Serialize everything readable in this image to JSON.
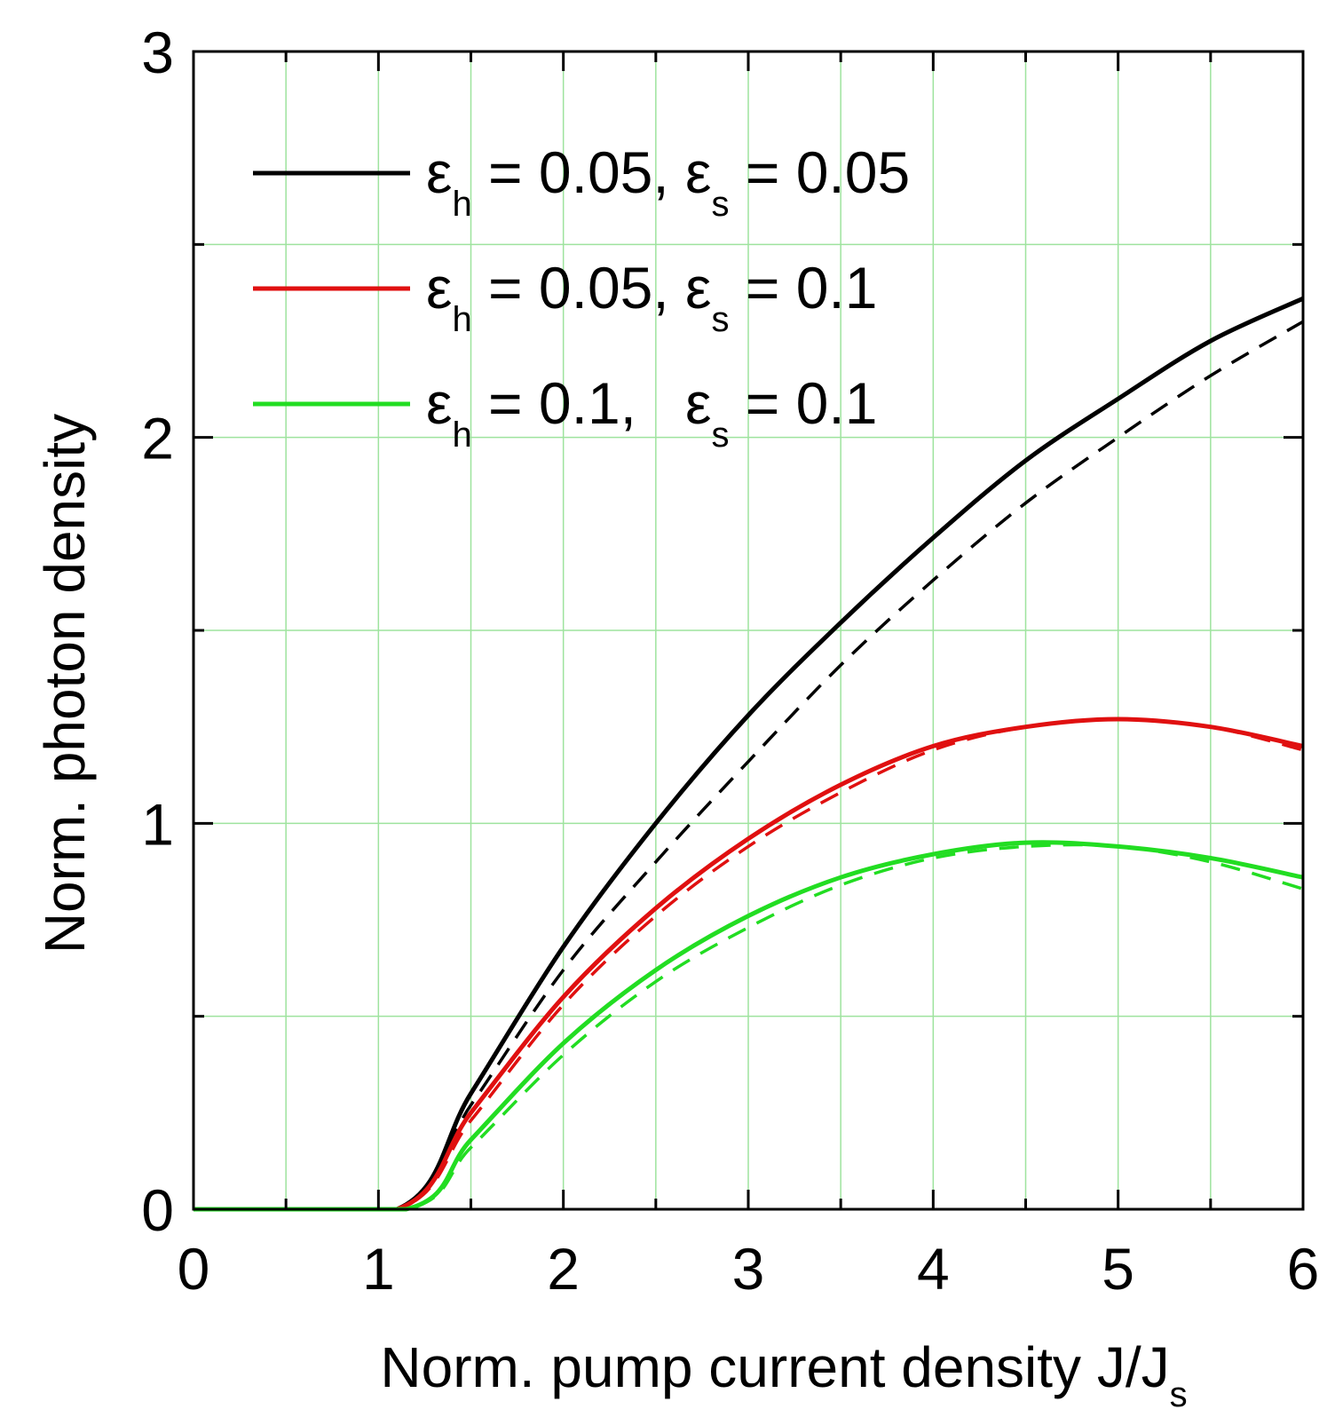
{
  "chart_data": {
    "type": "line",
    "xlabel": "Norm. pump current density J/J",
    "xlabel_sub": "s",
    "ylabel": "Norm. photon density",
    "xlim": [
      0,
      6
    ],
    "ylim": [
      0,
      3
    ],
    "x_ticks": [
      "0",
      "1",
      "2",
      "3",
      "4",
      "5",
      "6"
    ],
    "y_ticks": [
      "0",
      "1",
      "2",
      "3"
    ],
    "grid": true,
    "grid_color": "#9ee39e",
    "legend_position": "top-left",
    "series": [
      {
        "name": "εh = 0.05, εs = 0.05",
        "legend": {
          "eps1": "ε",
          "sub1": "h",
          "mid": " = 0.05, ",
          "eps2": "ε",
          "sub2": "s",
          "end": " = 0.05"
        },
        "color": "#000000",
        "style": "solid",
        "x": [
          0,
          1.1,
          1.5,
          2.0,
          2.5,
          3.0,
          3.5,
          4.0,
          4.5,
          5.0,
          5.5,
          6.0
        ],
        "y": [
          0,
          0,
          0.3,
          0.68,
          1.0,
          1.28,
          1.52,
          1.74,
          1.94,
          2.1,
          2.25,
          2.36
        ]
      },
      {
        "name": "εh = 0.05, εs = 0.05 (dashed)",
        "color": "#000000",
        "style": "dashed",
        "x": [
          0,
          1.1,
          1.5,
          2.0,
          2.5,
          3.0,
          3.5,
          4.0,
          4.5,
          5.0,
          5.5,
          6.0
        ],
        "y": [
          0,
          0,
          0.27,
          0.62,
          0.9,
          1.16,
          1.41,
          1.63,
          1.83,
          2.0,
          2.16,
          2.3
        ]
      },
      {
        "name": "εh = 0.05, εs = 0.1",
        "legend": {
          "eps1": "ε",
          "sub1": "h",
          "mid": " = 0.05, ",
          "eps2": "ε",
          "sub2": "s",
          "end": " = 0.1"
        },
        "color": "#e01010",
        "style": "solid",
        "x": [
          0,
          1.1,
          1.5,
          2.0,
          2.5,
          3.0,
          3.5,
          4.0,
          4.5,
          5.0,
          5.5,
          6.0
        ],
        "y": [
          0,
          0,
          0.25,
          0.55,
          0.78,
          0.96,
          1.1,
          1.2,
          1.25,
          1.27,
          1.25,
          1.2
        ]
      },
      {
        "name": "εh = 0.05, εs = 0.1 (dashed)",
        "color": "#e01010",
        "style": "dashed",
        "x": [
          0,
          1.1,
          1.5,
          2.0,
          2.5,
          3.0,
          3.5,
          4.0,
          4.5,
          5.0,
          5.5,
          6.0
        ],
        "y": [
          0,
          0,
          0.23,
          0.53,
          0.76,
          0.94,
          1.08,
          1.19,
          1.25,
          1.27,
          1.25,
          1.19
        ]
      },
      {
        "name": "εh = 0.1, εs = 0.1",
        "legend": {
          "eps1": "ε",
          "sub1": "h",
          "mid": " = 0.1,   ",
          "eps2": "ε",
          "sub2": "s",
          "end": " = 0.1"
        },
        "color": "#22dd22",
        "style": "solid",
        "x": [
          0,
          1.15,
          1.5,
          2.0,
          2.5,
          3.0,
          3.5,
          4.0,
          4.5,
          5.0,
          5.5,
          6.0
        ],
        "y": [
          0,
          0,
          0.18,
          0.43,
          0.62,
          0.76,
          0.86,
          0.92,
          0.95,
          0.94,
          0.91,
          0.86
        ]
      },
      {
        "name": "εh = 0.1, εs = 0.1 (dashed)",
        "color": "#22dd22",
        "style": "dashed",
        "x": [
          0,
          1.15,
          1.5,
          2.0,
          2.5,
          3.0,
          3.5,
          4.0,
          4.5,
          5.0,
          5.5,
          6.0
        ],
        "y": [
          0,
          0,
          0.16,
          0.4,
          0.59,
          0.73,
          0.84,
          0.91,
          0.94,
          0.94,
          0.9,
          0.83
        ]
      }
    ]
  }
}
